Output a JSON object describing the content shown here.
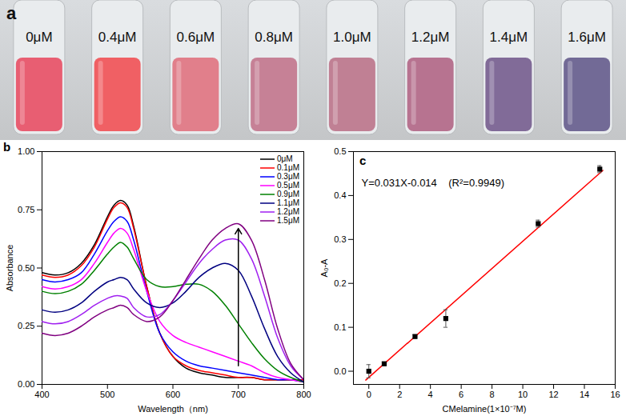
{
  "chart_data": [
    {
      "type": "photo",
      "panel": "a",
      "categories": [
        "0μM",
        "0.4μM",
        "0.6μM",
        "0.8μM",
        "1.0μM",
        "1.2μM",
        "1.4μM",
        "1.6μM"
      ],
      "colors": [
        "#e8566a",
        "#f0585c",
        "#e07985",
        "#c47b90",
        "#be7a8e",
        "#b46d8a",
        "#7b6492",
        "#6c6390"
      ]
    },
    {
      "type": "line",
      "panel": "b",
      "xlabel": "Wavelength（nm)",
      "ylabel": "Absorbance",
      "x": [
        400,
        420,
        440,
        460,
        480,
        500,
        510,
        520,
        530,
        540,
        560,
        580,
        600,
        620,
        640,
        660,
        680,
        700,
        720,
        740,
        760,
        780,
        800
      ],
      "series": [
        {
          "name": "0μM",
          "color": "#000000",
          "values": [
            0.48,
            0.47,
            0.48,
            0.52,
            0.6,
            0.72,
            0.77,
            0.79,
            0.77,
            0.68,
            0.42,
            0.22,
            0.12,
            0.07,
            0.05,
            0.04,
            0.03,
            0.03,
            0.03,
            0.02,
            0.02,
            0.02,
            0.02
          ]
        },
        {
          "name": "0.1μM",
          "color": "#ff0000",
          "values": [
            0.47,
            0.46,
            0.47,
            0.51,
            0.59,
            0.71,
            0.76,
            0.78,
            0.76,
            0.67,
            0.42,
            0.22,
            0.12,
            0.08,
            0.06,
            0.05,
            0.04,
            0.03,
            0.03,
            0.02,
            0.02,
            0.02,
            0.02
          ]
        },
        {
          "name": "0.3μM",
          "color": "#0000ff",
          "values": [
            0.45,
            0.44,
            0.45,
            0.48,
            0.56,
            0.66,
            0.7,
            0.72,
            0.7,
            0.62,
            0.4,
            0.22,
            0.14,
            0.1,
            0.08,
            0.07,
            0.06,
            0.05,
            0.04,
            0.03,
            0.02,
            0.02,
            0.01
          ]
        },
        {
          "name": "0.5μM",
          "color": "#ff00ff",
          "values": [
            0.42,
            0.41,
            0.42,
            0.45,
            0.52,
            0.61,
            0.65,
            0.67,
            0.65,
            0.58,
            0.4,
            0.27,
            0.21,
            0.18,
            0.16,
            0.14,
            0.12,
            0.1,
            0.08,
            0.05,
            0.03,
            0.02,
            0.01
          ]
        },
        {
          "name": "0.9μM",
          "color": "#008000",
          "values": [
            0.4,
            0.39,
            0.4,
            0.43,
            0.49,
            0.56,
            0.59,
            0.61,
            0.59,
            0.54,
            0.45,
            0.42,
            0.42,
            0.43,
            0.43,
            0.4,
            0.34,
            0.26,
            0.18,
            0.11,
            0.06,
            0.03,
            0.01
          ]
        },
        {
          "name": "1.1μM",
          "color": "#000080",
          "values": [
            0.32,
            0.31,
            0.32,
            0.35,
            0.4,
            0.44,
            0.45,
            0.46,
            0.45,
            0.41,
            0.35,
            0.33,
            0.35,
            0.4,
            0.46,
            0.5,
            0.52,
            0.49,
            0.38,
            0.24,
            0.12,
            0.05,
            0.01
          ]
        },
        {
          "name": "1.2μM",
          "color": "#a020f0",
          "values": [
            0.27,
            0.26,
            0.27,
            0.3,
            0.34,
            0.37,
            0.38,
            0.38,
            0.37,
            0.33,
            0.29,
            0.3,
            0.36,
            0.44,
            0.52,
            0.58,
            0.62,
            0.62,
            0.54,
            0.38,
            0.2,
            0.08,
            0.02
          ]
        },
        {
          "name": "1.5μM",
          "color": "#800080",
          "values": [
            0.22,
            0.21,
            0.22,
            0.25,
            0.29,
            0.32,
            0.33,
            0.34,
            0.33,
            0.3,
            0.27,
            0.29,
            0.36,
            0.45,
            0.54,
            0.62,
            0.67,
            0.69,
            0.62,
            0.45,
            0.24,
            0.09,
            0.02
          ]
        }
      ],
      "arrow": {
        "x": 700,
        "y1": 0.08,
        "y2": 0.67
      },
      "xlim": [
        400,
        800
      ],
      "xticks": [
        400,
        500,
        600,
        700,
        800
      ],
      "ylim": [
        0,
        1
      ],
      "yticks": [
        {
          "value": 0,
          "label": "0.00"
        },
        0.25,
        {
          "value": 0.5,
          "label": "0.50"
        },
        0.75,
        {
          "value": 1,
          "label": "1.00"
        }
      ],
      "legend": "top-right"
    },
    {
      "type": "scatter",
      "panel": "c",
      "xlabel": "CMelamine(1×10⁻⁷M)",
      "ylabel": "A₀-A",
      "annotation": "Y=0.031X-0.014    (R²=0.9949)",
      "x": [
        0,
        1,
        3,
        5,
        11,
        15
      ],
      "values": [
        0.0,
        0.017,
        0.079,
        0.12,
        0.336,
        0.46
      ],
      "error": [
        0.015,
        0.004,
        0.004,
        0.02,
        0.008,
        0.008
      ],
      "color": "#000000",
      "marker": "square",
      "fit": {
        "slope": 0.031,
        "intercept": -0.014,
        "x_range": [
          -0.2,
          15.2
        ],
        "color": "#ff0000"
      },
      "xlim": [
        -1,
        16
      ],
      "xticks": [
        0,
        2,
        4,
        6,
        8,
        10,
        12,
        14,
        16
      ],
      "ylim": [
        -0.03,
        0.5
      ],
      "yticks": [
        {
          "value": 0,
          "label": "0.0"
        },
        0.1,
        0.2,
        0.3,
        0.4,
        0.5
      ]
    }
  ]
}
